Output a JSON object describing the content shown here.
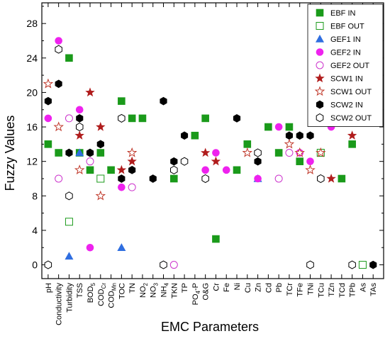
{
  "chart_data": {
    "type": "scatter",
    "xlabel": "EMC Parameters",
    "ylabel": "Fuzzy Values",
    "ylim": [
      -1.6,
      30.4
    ],
    "yticks": [
      0,
      4,
      8,
      12,
      16,
      20,
      24,
      28
    ],
    "legend_position": "top-right",
    "categories": [
      {
        "base": "pH",
        "sub": ""
      },
      {
        "base": "Conductivity",
        "sub": ""
      },
      {
        "base": "Turbidity",
        "sub": ""
      },
      {
        "base": "TSS",
        "sub": ""
      },
      {
        "base": "BOD",
        "sub": "5"
      },
      {
        "base": "COD",
        "sub": "Cr"
      },
      {
        "base": "COD",
        "sub": "Mn"
      },
      {
        "base": "TOC",
        "sub": ""
      },
      {
        "base": "TN",
        "sub": ""
      },
      {
        "base": "NO",
        "sub": "2"
      },
      {
        "base": "NO",
        "sub": "3"
      },
      {
        "base": "NH",
        "sub": "4"
      },
      {
        "base": "TKN",
        "sub": ""
      },
      {
        "base": "TP",
        "sub": ""
      },
      {
        "base": "PO",
        "sub": "4",
        "tail": "-P"
      },
      {
        "base": "O&G",
        "sub": ""
      },
      {
        "base": "Cr",
        "sub": ""
      },
      {
        "base": "Fe",
        "sub": ""
      },
      {
        "base": "Ni",
        "sub": ""
      },
      {
        "base": "Cu",
        "sub": ""
      },
      {
        "base": "Zn",
        "sub": ""
      },
      {
        "base": "Cd",
        "sub": ""
      },
      {
        "base": "Pb",
        "sub": ""
      },
      {
        "base": "TCr",
        "sub": ""
      },
      {
        "base": "TFe",
        "sub": ""
      },
      {
        "base": "TNi",
        "sub": ""
      },
      {
        "base": "TCu",
        "sub": ""
      },
      {
        "base": "TZn",
        "sub": ""
      },
      {
        "base": "TCd",
        "sub": ""
      },
      {
        "base": "TPb",
        "sub": ""
      },
      {
        "base": "As",
        "sub": ""
      },
      {
        "base": "TAs",
        "sub": ""
      }
    ],
    "series": [
      {
        "name": "EBF IN",
        "marker": "square",
        "filled": true,
        "color": "#1a9a1a",
        "points": [
          [
            0,
            14
          ],
          [
            1,
            13
          ],
          [
            2,
            24
          ],
          [
            3,
            13
          ],
          [
            4,
            11
          ],
          [
            5,
            13
          ],
          [
            6,
            11
          ],
          [
            7,
            19
          ],
          [
            8,
            17
          ],
          [
            9,
            17
          ],
          [
            12,
            10
          ],
          [
            14,
            15
          ],
          [
            15,
            17
          ],
          [
            16,
            3
          ],
          [
            18,
            11
          ],
          [
            19,
            14
          ],
          [
            21,
            16
          ],
          [
            22,
            13
          ],
          [
            23,
            16
          ],
          [
            24,
            12
          ],
          [
            26,
            13
          ],
          [
            28,
            10
          ],
          [
            29,
            14
          ]
        ]
      },
      {
        "name": "EBF OUT",
        "marker": "square",
        "filled": false,
        "color": "#1a9a1a",
        "points": [
          [
            2,
            5
          ],
          [
            5,
            10
          ],
          [
            26,
            13
          ],
          [
            30,
            0
          ]
        ]
      },
      {
        "name": "GEF1 IN",
        "marker": "triangle",
        "filled": true,
        "color": "#2f6ee0",
        "points": [
          [
            2,
            1
          ],
          [
            3,
            13
          ],
          [
            7,
            2
          ],
          [
            20,
            10
          ]
        ]
      },
      {
        "name": "GEF2 IN",
        "marker": "circle",
        "filled": true,
        "color": "#ee22ee",
        "points": [
          [
            0,
            17
          ],
          [
            1,
            26
          ],
          [
            3,
            18
          ],
          [
            4,
            2
          ],
          [
            7,
            9
          ],
          [
            8,
            9
          ],
          [
            15,
            11
          ],
          [
            16,
            13
          ],
          [
            17,
            11
          ],
          [
            20,
            10
          ],
          [
            22,
            16
          ],
          [
            24,
            13
          ],
          [
            25,
            12
          ],
          [
            27,
            16
          ]
        ]
      },
      {
        "name": "GEF2 OUT",
        "marker": "circle",
        "filled": false,
        "color": "#cc33cc",
        "points": [
          [
            1,
            10
          ],
          [
            2,
            17
          ],
          [
            4,
            12
          ],
          [
            8,
            9
          ],
          [
            12,
            0
          ],
          [
            22,
            10
          ],
          [
            23,
            13
          ]
        ]
      },
      {
        "name": "SCW1 IN",
        "marker": "star",
        "filled": true,
        "color": "#b01c1c",
        "points": [
          [
            0,
            21
          ],
          [
            3,
            15
          ],
          [
            4,
            20
          ],
          [
            5,
            16
          ],
          [
            7,
            11
          ],
          [
            8,
            12
          ],
          [
            15,
            13
          ],
          [
            16,
            12
          ],
          [
            27,
            10
          ],
          [
            29,
            15
          ]
        ]
      },
      {
        "name": "SCW1 OUT",
        "marker": "star",
        "filled": false,
        "color": "#c0392b",
        "points": [
          [
            0,
            21
          ],
          [
            1,
            16
          ],
          [
            3,
            11
          ],
          [
            5,
            8
          ],
          [
            8,
            13
          ],
          [
            19,
            13
          ],
          [
            23,
            14
          ],
          [
            24,
            13
          ],
          [
            25,
            11
          ],
          [
            26,
            13
          ]
        ]
      },
      {
        "name": "SCW2 IN",
        "marker": "hexagon",
        "filled": true,
        "color": "#000000",
        "points": [
          [
            0,
            19
          ],
          [
            1,
            21
          ],
          [
            2,
            13
          ],
          [
            3,
            17
          ],
          [
            4,
            13
          ],
          [
            5,
            14
          ],
          [
            7,
            10
          ],
          [
            8,
            11
          ],
          [
            10,
            10
          ],
          [
            11,
            19
          ],
          [
            12,
            12
          ],
          [
            13,
            15
          ],
          [
            18,
            17
          ],
          [
            20,
            12
          ],
          [
            23,
            15
          ],
          [
            24,
            15
          ],
          [
            25,
            15
          ],
          [
            31,
            0
          ]
        ]
      },
      {
        "name": "SCW2 OUT",
        "marker": "hexagon",
        "filled": false,
        "color": "#000000",
        "points": [
          [
            0,
            0
          ],
          [
            1,
            25
          ],
          [
            2,
            8
          ],
          [
            3,
            16
          ],
          [
            7,
            17
          ],
          [
            11,
            0
          ],
          [
            12,
            11
          ],
          [
            13,
            12
          ],
          [
            15,
            10
          ],
          [
            20,
            13
          ],
          [
            25,
            0
          ],
          [
            26,
            10
          ],
          [
            29,
            0
          ]
        ]
      }
    ]
  }
}
